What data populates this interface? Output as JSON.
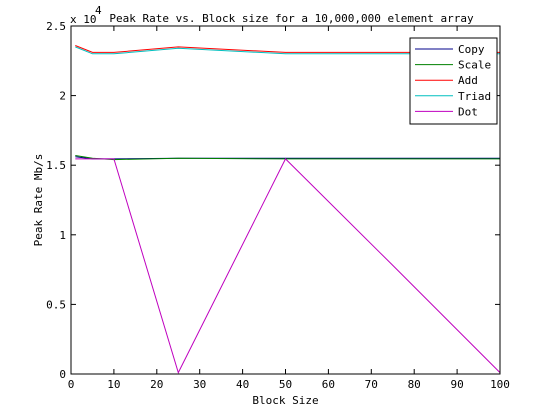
{
  "chart_data": {
    "type": "line",
    "title": "Peak Rate vs. Block size for a 10,000,000 element array",
    "xlabel": "Block Size",
    "ylabel": "Peak Rate Mb/s",
    "y_exponent_prefix": "x 10",
    "y_exponent_power": "4",
    "xlim": [
      0,
      100
    ],
    "ylim": [
      0,
      2.5
    ],
    "x_ticks": [
      0,
      10,
      20,
      30,
      40,
      50,
      60,
      70,
      80,
      90,
      100
    ],
    "x_tick_labels": [
      "0",
      "10",
      "20",
      "30",
      "40",
      "50",
      "60",
      "70",
      "80",
      "90",
      "100"
    ],
    "y_ticks": [
      0,
      0.5,
      1,
      1.5,
      2,
      2.5
    ],
    "y_tick_labels": [
      "0",
      "0.5",
      "1",
      "1.5",
      "2",
      "2.5"
    ],
    "grid": false,
    "legend_position": "top-right",
    "x": [
      1,
      5,
      10,
      25,
      50,
      75,
      100
    ],
    "series": [
      {
        "name": "Copy",
        "color": "#00008b",
        "values": [
          1.56,
          1.545,
          1.545,
          1.55,
          1.55,
          1.55,
          1.55
        ]
      },
      {
        "name": "Scale",
        "color": "#008000",
        "values": [
          1.57,
          1.55,
          1.54,
          1.55,
          1.545,
          1.545,
          1.545
        ]
      },
      {
        "name": "Add",
        "color": "#ff0000",
        "values": [
          2.36,
          2.31,
          2.31,
          2.35,
          2.31,
          2.31,
          2.31
        ]
      },
      {
        "name": "Triad",
        "color": "#00bfbf",
        "values": [
          2.35,
          2.3,
          2.3,
          2.34,
          2.3,
          2.3,
          2.3
        ]
      },
      {
        "name": "Dot",
        "color": "#bf00bf",
        "values": [
          1.545,
          1.545,
          1.545,
          0.01,
          1.545,
          0.78,
          0.01
        ]
      }
    ]
  }
}
